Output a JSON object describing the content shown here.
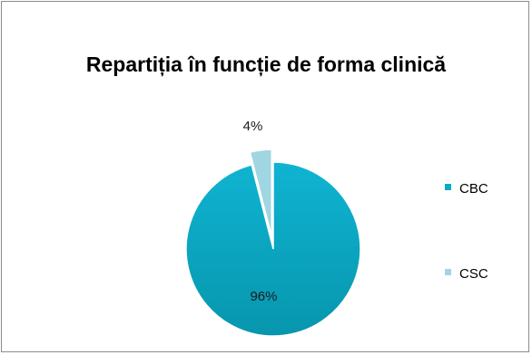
{
  "chart_data": {
    "type": "pie",
    "title": "Repartiția în funcție de forma clinică",
    "categories": [
      "CBC",
      "CSC"
    ],
    "values": [
      96,
      4
    ],
    "data_labels": [
      "96%",
      "4%"
    ],
    "colors": [
      "#0aaac8",
      "#9fd6e2"
    ],
    "legend_position": "right",
    "exploded": [
      "CSC"
    ]
  }
}
